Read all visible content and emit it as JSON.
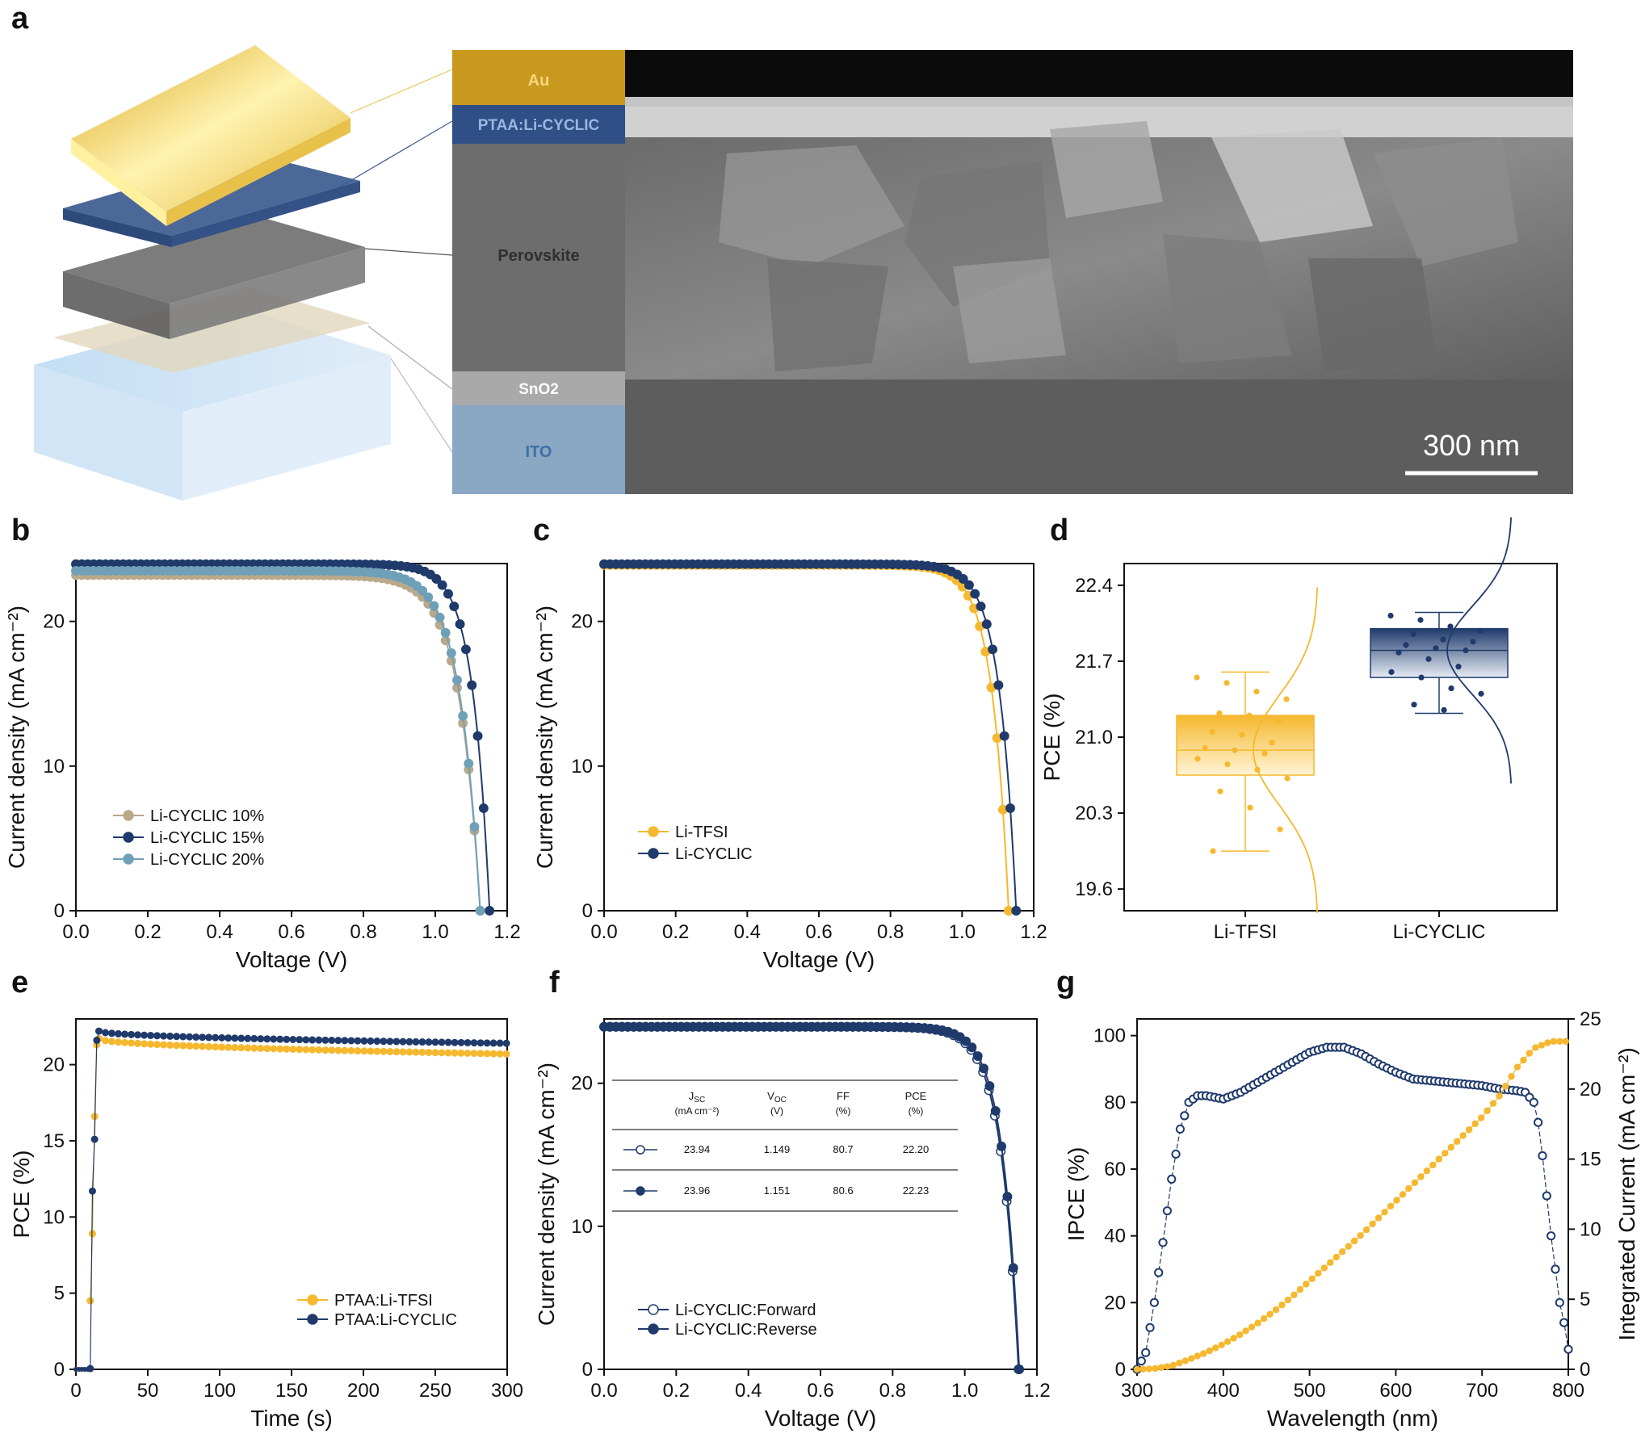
{
  "panel_letters": [
    "a",
    "b",
    "c",
    "d",
    "e",
    "f",
    "g"
  ],
  "panel_a": {
    "layers": [
      "Au",
      "PTAA:Li-CYCLIC",
      "Perovskite",
      "SnO2",
      "ITO"
    ],
    "scale_bar": "300 nm",
    "colors": {
      "Au": "#e3b233",
      "PTAA": "#3d5b8f",
      "Perovskite": "#7a7a7a",
      "SnO2": "#cfcfcf",
      "ITO": "#a9c9e8"
    }
  },
  "colors": {
    "yellow": "#f5b82e",
    "navy": "#1f3a6b",
    "tan": "#b9a98a",
    "teal": "#6fa0b8"
  },
  "chart_data": [
    {
      "panel": "b",
      "type": "line",
      "xlabel": "Voltage (V)",
      "ylabel": "Current density (mA cm⁻²)",
      "xlim": [
        0,
        1.2
      ],
      "ylim": [
        0,
        24
      ],
      "xticks": [
        "0.0",
        "0.2",
        "0.4",
        "0.6",
        "0.8",
        "1.0",
        "1.2"
      ],
      "yticks": [
        "0",
        "10",
        "20"
      ],
      "legend": "bottom-left",
      "series": [
        {
          "name": "Li-CYCLIC 10%",
          "color": "#b9a98a",
          "jsc": 23.2,
          "voc": 1.125,
          "knee": 0.86
        },
        {
          "name": "Li-CYCLIC 15%",
          "color": "#1f3a6b",
          "jsc": 23.96,
          "voc": 1.151,
          "knee": 0.94
        },
        {
          "name": "Li-CYCLIC 20%",
          "color": "#6fa0b8",
          "jsc": 23.5,
          "voc": 1.125,
          "knee": 0.87
        }
      ]
    },
    {
      "panel": "c",
      "type": "line",
      "xlabel": "Voltage (V)",
      "ylabel": "Current density (mA cm⁻²)",
      "xlim": [
        0,
        1.2
      ],
      "ylim": [
        0,
        24
      ],
      "xticks": [
        "0.0",
        "0.2",
        "0.4",
        "0.6",
        "0.8",
        "1.0",
        "1.2"
      ],
      "yticks": [
        "0",
        "10",
        "20"
      ],
      "legend": "bottom-left",
      "series": [
        {
          "name": "Li-TFSI",
          "color": "#f5b82e",
          "jsc": 23.9,
          "voc": 1.13,
          "knee": 0.92
        },
        {
          "name": "Li-CYCLIC",
          "color": "#1f3a6b",
          "jsc": 23.96,
          "voc": 1.151,
          "knee": 0.94
        }
      ]
    },
    {
      "panel": "d",
      "type": "box",
      "ylabel": "PCE (%)",
      "ylim": [
        19.4,
        22.6
      ],
      "yticks": [
        "19.6",
        "20.3",
        "21.0",
        "21.7",
        "22.4"
      ],
      "categories": [
        "Li-TFSI",
        "Li-CYCLIC"
      ],
      "boxes": [
        {
          "name": "Li-TFSI",
          "color": "#f5b82e",
          "min": 19.95,
          "q1": 20.65,
          "median": 20.88,
          "q3": 21.2,
          "max": 21.6,
          "points": [
            21.55,
            21.5,
            21.42,
            21.35,
            21.22,
            21.2,
            21.15,
            21.05,
            21.02,
            20.95,
            20.9,
            20.88,
            20.85,
            20.8,
            20.75,
            20.7,
            20.62,
            20.5,
            20.35,
            20.15,
            19.95
          ]
        },
        {
          "name": "Li-CYCLIC",
          "color": "#1f3a6b",
          "min": 21.22,
          "q1": 21.55,
          "median": 21.8,
          "q3": 22.0,
          "max": 22.15,
          "points": [
            22.12,
            22.08,
            22.02,
            21.98,
            21.95,
            21.9,
            21.88,
            21.85,
            21.82,
            21.8,
            21.78,
            21.72,
            21.65,
            21.6,
            21.55,
            21.45,
            21.4,
            21.3,
            21.25
          ]
        }
      ]
    },
    {
      "panel": "e",
      "type": "scatter",
      "xlabel": "Time (s)",
      "ylabel": "PCE (%)",
      "xlim": [
        0,
        300
      ],
      "ylim": [
        0,
        23
      ],
      "xticks": [
        "0",
        "50",
        "100",
        "150",
        "200",
        "250",
        "300"
      ],
      "yticks": [
        "0",
        "5",
        "10",
        "15",
        "20"
      ],
      "legend": "bottom-right",
      "series": [
        {
          "name": "PTAA:Li-TFSI",
          "color": "#f5b82e",
          "start": 10,
          "ramp": [
            4.5,
            8.9,
            16.6,
            21.3
          ],
          "plateau_start": 21.7,
          "plateau_end": 20.7
        },
        {
          "name": "PTAA:Li-CYCLIC",
          "color": "#1f3a6b",
          "start": 10,
          "ramp": [
            0.05,
            11.7,
            15.1,
            21.6
          ],
          "plateau_start": 22.2,
          "plateau_end": 21.4
        }
      ]
    },
    {
      "panel": "f",
      "type": "line",
      "xlabel": "Voltage (V)",
      "ylabel": "Current density (mA cm⁻²)",
      "xlim": [
        0,
        1.2
      ],
      "ylim": [
        0,
        24.5
      ],
      "xticks": [
        "0.0",
        "0.2",
        "0.4",
        "0.6",
        "0.8",
        "1.0",
        "1.2"
      ],
      "yticks": [
        "0",
        "10",
        "20"
      ],
      "legend": "bottom-left",
      "series": [
        {
          "name": "Li-CYCLIC:Forward",
          "color": "#1f3a6b",
          "hollow": true,
          "jsc": 23.94,
          "voc": 1.149,
          "knee": 0.93
        },
        {
          "name": "Li-CYCLIC:Reverse",
          "color": "#1f3a6b",
          "hollow": false,
          "jsc": 23.96,
          "voc": 1.151,
          "knee": 0.94
        }
      ],
      "table": {
        "headers": [
          [
            "J",
            "SC",
            "(mA cm⁻²)"
          ],
          [
            "V",
            "OC",
            "(V)"
          ],
          [
            "FF",
            null,
            "(%)"
          ],
          [
            "PCE",
            null,
            "(%)"
          ]
        ],
        "rows": [
          {
            "marker": "hollow",
            "values": [
              "23.94",
              "1.149",
              "80.7",
              "22.20"
            ]
          },
          {
            "marker": "filled",
            "values": [
              "23.96",
              "1.151",
              "80.6",
              "22.23"
            ]
          }
        ]
      }
    },
    {
      "panel": "g",
      "type": "line",
      "xlabel": "Wavelength (nm)",
      "ylabel": "IPCE (%)",
      "y2label": "Integrated Current (mA cm⁻²)",
      "xlim": [
        300,
        800
      ],
      "ylim": [
        0,
        105
      ],
      "y2lim": [
        0,
        25
      ],
      "xticks": [
        "300",
        "400",
        "500",
        "600",
        "700",
        "800"
      ],
      "yticks": [
        "0",
        "20",
        "40",
        "60",
        "80",
        "100"
      ],
      "y2ticks": [
        "0",
        "5",
        "10",
        "15",
        "20",
        "25"
      ],
      "series": [
        {
          "name": "IPCE",
          "color": "#1f3a6b",
          "axis": "left",
          "x": [
            300,
            310,
            320,
            330,
            340,
            350,
            360,
            370,
            380,
            400,
            420,
            440,
            460,
            480,
            500,
            520,
            540,
            560,
            580,
            600,
            620,
            640,
            660,
            680,
            700,
            720,
            740,
            750,
            760,
            765,
            770,
            775,
            780,
            785,
            790,
            795,
            800
          ],
          "y": [
            0,
            5,
            20,
            38,
            57,
            72,
            80,
            82,
            82,
            81,
            83,
            86,
            89,
            92,
            95,
            96.5,
            96.5,
            94.5,
            91.5,
            89,
            87,
            86.5,
            86,
            85.5,
            85,
            84,
            83.5,
            83,
            80,
            74,
            64,
            52,
            40,
            30,
            20,
            14,
            6
          ]
        },
        {
          "name": "Integrated Current",
          "color": "#f5b82e",
          "axis": "right",
          "x": [
            300,
            320,
            340,
            360,
            380,
            400,
            420,
            440,
            460,
            480,
            500,
            520,
            540,
            560,
            580,
            600,
            620,
            640,
            660,
            680,
            700,
            720,
            740,
            760,
            780,
            790,
            800
          ],
          "y": [
            0,
            0.05,
            0.25,
            0.7,
            1.2,
            1.8,
            2.5,
            3.3,
            4.2,
            5.2,
            6.3,
            7.4,
            8.5,
            9.6,
            10.8,
            12.0,
            13.2,
            14.4,
            15.6,
            16.8,
            18.0,
            19.5,
            21.5,
            22.9,
            23.4,
            23.4,
            23.4
          ]
        }
      ]
    }
  ]
}
